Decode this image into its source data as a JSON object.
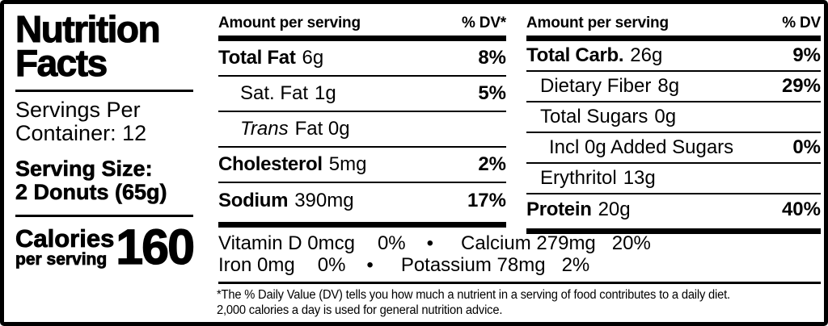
{
  "left_panel": {
    "title_line1": "Nutrition",
    "title_line2": "Facts",
    "servings_line1": "Servings Per",
    "servings_line2": "Container: 12",
    "serving_size_label": "Serving Size:",
    "serving_size_value": "2 Donuts (65g)",
    "calories_label": "Calories",
    "calories_sublabel": "per serving",
    "calories_value": "160"
  },
  "fat_column": {
    "header_left": "Amount per serving",
    "header_right": "% DV*",
    "rows": [
      {
        "name": "Total Fat",
        "amount": "6g",
        "dv": "8%"
      },
      {
        "name": "Sat. Fat",
        "amount": "1g",
        "dv": "5%"
      },
      {
        "name_italic": "Trans",
        "amount": "Fat 0g",
        "dv": ""
      },
      {
        "name": "Cholesterol",
        "amount": "5mg",
        "dv": "2%"
      },
      {
        "name": "Sodium",
        "amount": "390mg",
        "dv": "17%"
      }
    ]
  },
  "carb_column": {
    "header_left": "Amount per serving",
    "header_right": "% DV",
    "rows": [
      {
        "name": "Total Carb.",
        "amount": "26g",
        "dv": "9%"
      },
      {
        "name": "Dietary Fiber",
        "amount": "8g",
        "dv": "29%"
      },
      {
        "name": "Total Sugars",
        "amount": "0g",
        "dv": ""
      },
      {
        "name": "Incl 0g Added Sugars",
        "amount": "",
        "dv": "0%"
      },
      {
        "name": "Erythritol",
        "amount": "13g",
        "dv": ""
      },
      {
        "name": "Protein",
        "amount": "20g",
        "dv": "40%"
      }
    ]
  },
  "micronutrients": {
    "separator": "•",
    "line1": {
      "item1": "Vitamin D 0mcg",
      "item1_dv": "0%",
      "item2": "Calcium 279mg",
      "item2_dv": "20%"
    },
    "line2": {
      "item1": "Iron 0mg",
      "item1_dv": "0%",
      "item2": "Potassium 78mg",
      "item2_dv": "2%"
    }
  },
  "footnote": {
    "line1": "*The % Daily Value (DV) tells you how much a nutrient in a serving of food contributes to a daily diet.",
    "line2": "2,000 calories a day is used for general nutrition advice."
  },
  "colors": {
    "ink": "#000000",
    "background": "#ffffff"
  }
}
